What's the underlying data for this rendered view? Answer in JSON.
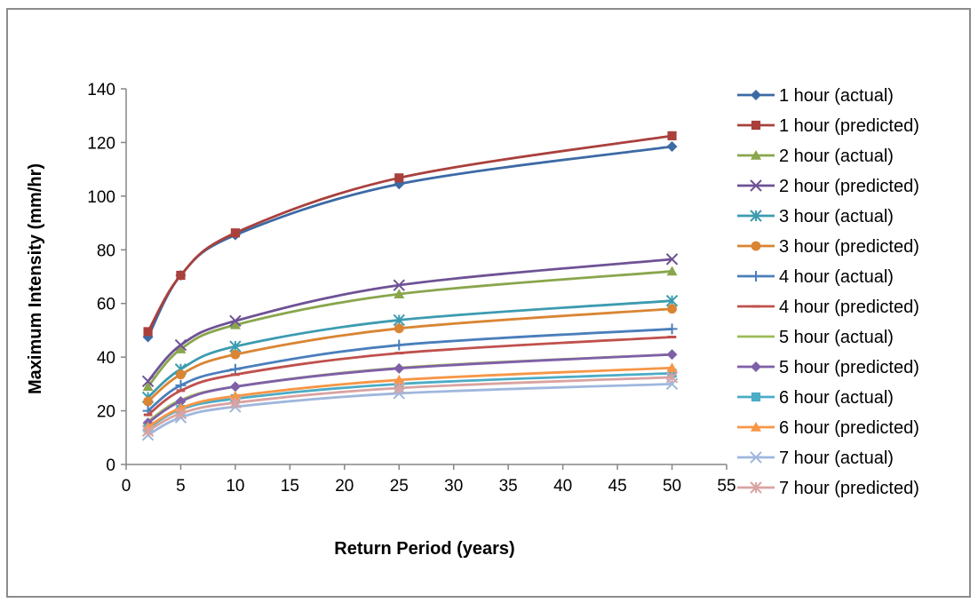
{
  "chart_data": {
    "type": "line",
    "title": "",
    "xlabel": "Return Period (years)",
    "ylabel": "Maximum Intensity (mm/hr)",
    "xlim": [
      0,
      55
    ],
    "ylim": [
      0,
      140
    ],
    "x_ticks": [
      0,
      5,
      10,
      15,
      20,
      25,
      30,
      35,
      40,
      45,
      50,
      55
    ],
    "y_ticks": [
      0,
      20,
      40,
      60,
      80,
      100,
      120,
      140
    ],
    "grid": false,
    "legend_position": "right",
    "x": [
      2,
      5,
      10,
      25,
      50
    ],
    "series": [
      {
        "name": "1 hour (actual)",
        "color": "#3c6aa5",
        "marker": "diamond",
        "values": [
          47.5,
          70.5,
          85.5,
          104.5,
          118.5
        ]
      },
      {
        "name": "1 hour (predicted)",
        "color": "#a9403c",
        "marker": "square",
        "values": [
          49.5,
          70.5,
          86.3,
          106.8,
          122.5
        ]
      },
      {
        "name": "2 hour (actual)",
        "color": "#89a64c",
        "marker": "triangle",
        "values": [
          29,
          43,
          52,
          63.5,
          72
        ]
      },
      {
        "name": "2 hour (predicted)",
        "color": "#6e5295",
        "marker": "x",
        "values": [
          31,
          44.5,
          53.5,
          66.8,
          76.5
        ]
      },
      {
        "name": "3 hour (actual)",
        "color": "#3c9bb0",
        "marker": "star",
        "values": [
          25,
          35.5,
          44,
          53.8,
          61
        ]
      },
      {
        "name": "3 hour (predicted)",
        "color": "#d98533",
        "marker": "circle",
        "values": [
          23.5,
          33.5,
          41,
          50.7,
          58
        ]
      },
      {
        "name": "4 hour (actual)",
        "color": "#4a7ebb",
        "marker": "plus",
        "values": [
          20,
          29.5,
          35.5,
          44.5,
          50.5
        ]
      },
      {
        "name": "4 hour (predicted)",
        "color": "#c0504d",
        "marker": "dash",
        "values": [
          18.5,
          27.5,
          33.5,
          41.5,
          47.5
        ]
      },
      {
        "name": "5 hour (actual)",
        "color": "#9bbb59",
        "marker": "none",
        "values": [
          16,
          24,
          29,
          36,
          41
        ]
      },
      {
        "name": "5 hour (predicted)",
        "color": "#7f60a8",
        "marker": "diamond",
        "values": [
          15.5,
          23.5,
          29,
          35.8,
          41
        ]
      },
      {
        "name": "6 hour (actual)",
        "color": "#4bacc6",
        "marker": "square",
        "values": [
          13.5,
          20.5,
          24.5,
          30,
          34
        ]
      },
      {
        "name": "6 hour (predicted)",
        "color": "#f79646",
        "marker": "triangle",
        "values": [
          14,
          21,
          25.5,
          31.5,
          36
        ]
      },
      {
        "name": "7 hour (actual)",
        "color": "#9fb7dd",
        "marker": "x",
        "values": [
          11,
          17.5,
          21.5,
          26.5,
          30
        ]
      },
      {
        "name": "7 hour (predicted)",
        "color": "#d9a3a1",
        "marker": "star",
        "values": [
          12.5,
          19,
          23,
          28.5,
          32.5
        ]
      }
    ]
  }
}
